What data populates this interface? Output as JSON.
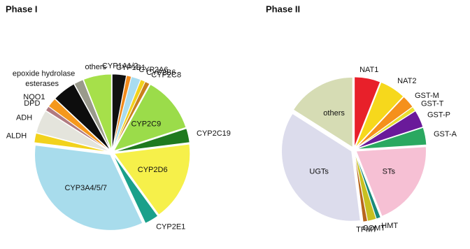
{
  "chart_data": [
    {
      "type": "pie",
      "title": "Phase I",
      "categories": [
        "CYP1A1/2",
        "CYP1B1",
        "CYP2A6",
        "CYP2B6",
        "CYP2C8",
        "CYP2C9",
        "CYP2C19",
        "CYP2D6",
        "CYP2E1",
        "CYP3A4/5/7",
        "ALDH",
        "ADH",
        "DPD",
        "NQO1",
        "esterases",
        "epoxide hydrolase",
        "others"
      ],
      "values": [
        3,
        1,
        2,
        1,
        1,
        12,
        3,
        17,
        3,
        34,
        2,
        5,
        1,
        2,
        5,
        2,
        6
      ],
      "colors": [
        "#111111",
        "#f08a1c",
        "#a9dcef",
        "#f2d21c",
        "#c9801c",
        "#9bdc4a",
        "#1f7a1f",
        "#f6f04a",
        "#1aa08a",
        "#a8dcec",
        "#f2d21c",
        "#e4e4dc",
        "#b07a80",
        "#f5981c",
        "#0d0d0d",
        "#9a9a8c",
        "#a6e04a"
      ]
    },
    {
      "type": "pie",
      "title": "Phase II",
      "categories": [
        "NAT1",
        "NAT2",
        "GST-M",
        "GST-T",
        "GST-P",
        "GST-A",
        "STs",
        "HMT",
        "COMT",
        "TPMT",
        "UGTs",
        "others"
      ],
      "values": [
        6,
        6,
        3,
        1,
        4,
        4,
        20,
        1,
        2,
        1,
        36,
        16
      ],
      "colors": [
        "#e8202a",
        "#f6d81c",
        "#f5901c",
        "#e8e030",
        "#6a1a9a",
        "#2aa860",
        "#f6c0d4",
        "#1a8a7a",
        "#c8c020",
        "#b8661c",
        "#dcdcec",
        "#d6dcb4"
      ]
    }
  ]
}
